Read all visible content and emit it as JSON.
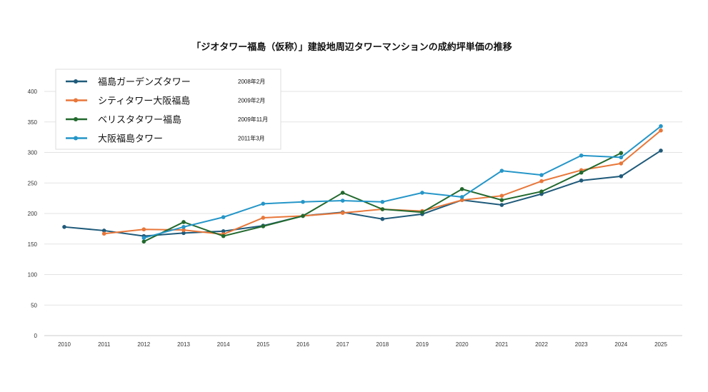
{
  "chart_data": {
    "type": "line",
    "title": "「ジオタワー福島（仮称）」建設地周辺タワーマンションの成約坪単価の推移",
    "xlabel": "",
    "ylabel": "",
    "x": [
      2010,
      2011,
      2012,
      2013,
      2014,
      2015,
      2016,
      2017,
      2018,
      2019,
      2020,
      2021,
      2022,
      2023,
      2024,
      2025
    ],
    "ylim": [
      0,
      400
    ],
    "yticks": [
      0,
      50,
      100,
      150,
      200,
      250,
      300,
      350,
      400
    ],
    "grid": true,
    "legend_position": "top-left",
    "series": [
      {
        "name": "福島ガーデンズタワー",
        "date": "2008年2月",
        "color": "#1f5a7a",
        "values": [
          178,
          172,
          163,
          168,
          171,
          180,
          196,
          202,
          191,
          199,
          222,
          214,
          232,
          254,
          261,
          303
        ]
      },
      {
        "name": "シティタワー大阪福島",
        "date": "2009年2月",
        "color": "#e8773a",
        "values": [
          null,
          167,
          174,
          173,
          166,
          193,
          196,
          201,
          207,
          204,
          222,
          229,
          253,
          271,
          282,
          336
        ]
      },
      {
        "name": "ベリスタタワー福島",
        "date": "2009年11月",
        "color": "#22692e",
        "values": [
          null,
          null,
          154,
          186,
          163,
          179,
          196,
          234,
          207,
          202,
          240,
          222,
          236,
          267,
          299,
          null
        ]
      },
      {
        "name": "大阪福島タワー",
        "date": "2011年3月",
        "color": "#2596c8",
        "values": [
          null,
          null,
          160,
          178,
          194,
          216,
          219,
          221,
          219,
          234,
          227,
          270,
          263,
          295,
          292,
          343
        ]
      }
    ]
  }
}
